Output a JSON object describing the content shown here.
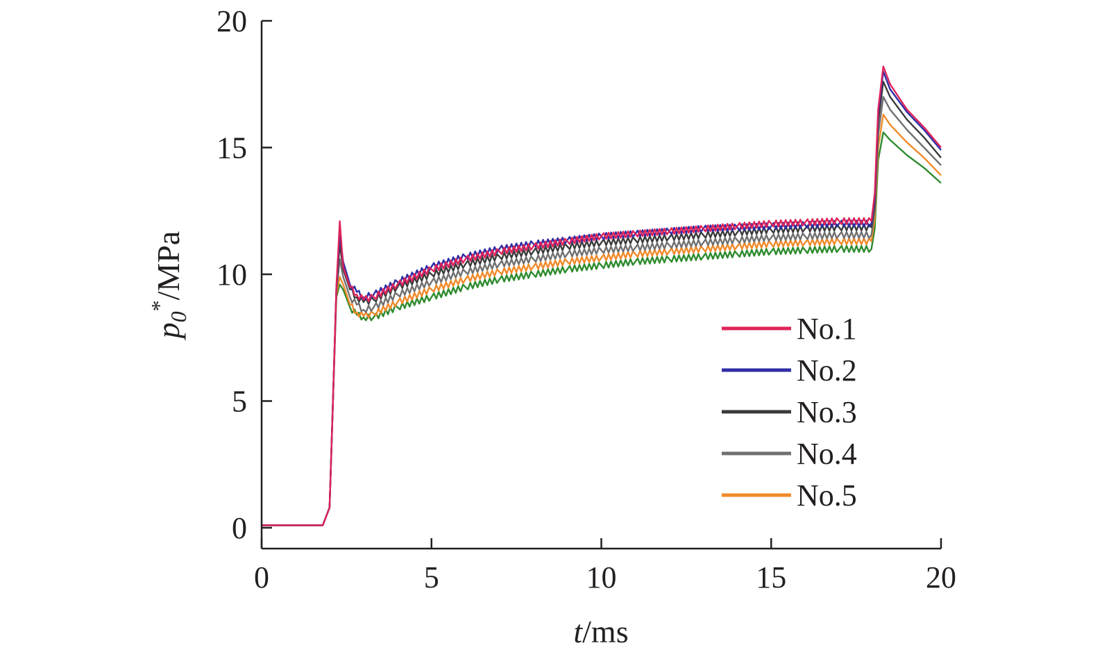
{
  "chart_data": {
    "type": "line",
    "xlabel": {
      "var": "t",
      "unit": "/ms"
    },
    "ylabel": {
      "var": "p",
      "sub": "0",
      "sup": "*",
      "unit": "/MPa"
    },
    "xlim": [
      0,
      20
    ],
    "ylim": [
      0,
      20
    ],
    "xticks": [
      "0",
      "5",
      "10",
      "15",
      "20"
    ],
    "yticks": [
      "0",
      "5",
      "10",
      "15",
      "20"
    ],
    "grid": false,
    "legend_position": "right-center",
    "series": [
      {
        "name": "No.1",
        "color": "#e0245a",
        "x": [
          0,
          1.8,
          2.0,
          2.1,
          2.2,
          2.3,
          2.4,
          2.6,
          2.8,
          3.0,
          3.3,
          4,
          5,
          6,
          7,
          8,
          9,
          10,
          11,
          12,
          13,
          14,
          15,
          16,
          17,
          17.95,
          18.05,
          18.15,
          18.3,
          18.5,
          19,
          19.5,
          20
        ],
        "y": [
          0.1,
          0.1,
          0.8,
          5.0,
          9.5,
          12.1,
          10.3,
          9.5,
          9.2,
          9.0,
          9.1,
          9.6,
          10.2,
          10.6,
          10.9,
          11.1,
          11.3,
          11.5,
          11.6,
          11.7,
          11.8,
          11.9,
          12.0,
          12.05,
          12.1,
          12.1,
          13.2,
          16.5,
          18.2,
          17.5,
          16.5,
          15.8,
          15.0
        ]
      },
      {
        "name": "No.2",
        "color": "#2e2ea5",
        "x": [
          0,
          1.8,
          2.0,
          2.1,
          2.2,
          2.3,
          2.4,
          2.6,
          2.8,
          3.0,
          3.3,
          4,
          5,
          6,
          7,
          8,
          9,
          10,
          11,
          12,
          13,
          14,
          15,
          16,
          17,
          17.95,
          18.05,
          18.15,
          18.3,
          18.5,
          19,
          19.5,
          20
        ],
        "y": [
          0.1,
          0.1,
          0.8,
          5.0,
          9.5,
          11.6,
          10.5,
          9.6,
          9.3,
          9.1,
          9.2,
          9.7,
          10.3,
          10.7,
          11.0,
          11.2,
          11.35,
          11.5,
          11.6,
          11.7,
          11.8,
          11.85,
          11.9,
          11.95,
          12.0,
          12.0,
          13.0,
          16.3,
          18.0,
          17.3,
          16.4,
          15.7,
          14.9
        ]
      },
      {
        "name": "No.3",
        "color": "#3a3a3a",
        "x": [
          0,
          1.8,
          2.0,
          2.1,
          2.2,
          2.3,
          2.4,
          2.6,
          2.8,
          3.0,
          3.3,
          4,
          5,
          6,
          7,
          8,
          9,
          10,
          11,
          12,
          13,
          14,
          15,
          16,
          17,
          17.95,
          18.05,
          18.15,
          18.3,
          18.5,
          19,
          19.5,
          20
        ],
        "y": [
          0.1,
          0.1,
          0.8,
          5.0,
          9.4,
          11.2,
          10.2,
          9.4,
          9.1,
          8.9,
          9.0,
          9.5,
          10.0,
          10.4,
          10.7,
          10.9,
          11.1,
          11.25,
          11.35,
          11.45,
          11.55,
          11.65,
          11.75,
          11.8,
          11.85,
          11.85,
          12.8,
          16.0,
          17.6,
          17.0,
          16.1,
          15.4,
          14.6
        ]
      },
      {
        "name": "No.4",
        "color": "#707070",
        "x": [
          0,
          1.8,
          2.0,
          2.1,
          2.2,
          2.3,
          2.4,
          2.6,
          2.8,
          3.0,
          3.3,
          4,
          5,
          6,
          7,
          8,
          9,
          10,
          11,
          12,
          13,
          14,
          15,
          16,
          17,
          17.95,
          18.05,
          18.15,
          18.3,
          18.5,
          19,
          19.5,
          20
        ],
        "y": [
          0.1,
          0.1,
          0.8,
          5.0,
          9.3,
          10.6,
          9.9,
          9.1,
          8.8,
          8.6,
          8.7,
          9.2,
          9.7,
          10.1,
          10.4,
          10.6,
          10.8,
          10.95,
          11.05,
          11.15,
          11.25,
          11.35,
          11.45,
          11.5,
          11.55,
          11.55,
          12.5,
          15.5,
          17.0,
          16.5,
          15.7,
          15.0,
          14.3
        ]
      },
      {
        "name": "No.5",
        "color": "#f08a2a",
        "x": [
          0,
          1.8,
          2.0,
          2.1,
          2.2,
          2.3,
          2.4,
          2.6,
          2.8,
          3.0,
          3.3,
          4,
          5,
          6,
          7,
          8,
          9,
          10,
          11,
          12,
          13,
          14,
          15,
          16,
          17,
          17.95,
          18.05,
          18.15,
          18.3,
          18.5,
          19,
          19.5,
          20
        ],
        "y": [
          0.1,
          0.1,
          0.8,
          5.0,
          9.2,
          9.9,
          9.6,
          8.8,
          8.5,
          8.35,
          8.45,
          8.9,
          9.4,
          9.8,
          10.1,
          10.3,
          10.5,
          10.65,
          10.8,
          10.9,
          11.0,
          11.1,
          11.2,
          11.25,
          11.3,
          11.3,
          12.2,
          15.0,
          16.3,
          15.9,
          15.2,
          14.6,
          13.9
        ]
      },
      {
        "color": "#2e8b2e",
        "x": [
          0,
          1.8,
          2.0,
          2.1,
          2.2,
          2.3,
          2.4,
          2.6,
          2.8,
          3.0,
          3.3,
          4,
          5,
          6,
          7,
          8,
          9,
          10,
          11,
          12,
          13,
          14,
          15,
          16,
          17,
          17.95,
          18.05,
          18.15,
          18.3,
          18.5,
          19,
          19.5,
          20
        ],
        "y": [
          0.1,
          0.1,
          0.8,
          5.0,
          9.1,
          9.6,
          9.4,
          8.7,
          8.4,
          8.3,
          8.3,
          8.7,
          9.1,
          9.5,
          9.8,
          10.0,
          10.2,
          10.35,
          10.5,
          10.6,
          10.7,
          10.8,
          10.9,
          10.95,
          11.0,
          11.0,
          11.8,
          14.5,
          15.6,
          15.3,
          14.7,
          14.2,
          13.6
        ]
      }
    ]
  }
}
